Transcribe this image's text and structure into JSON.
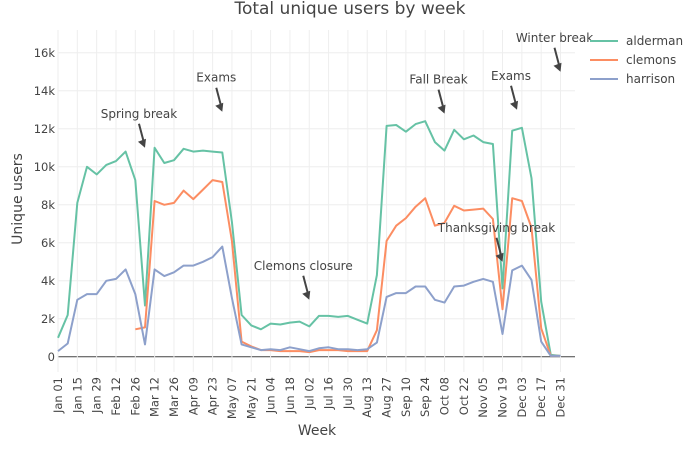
{
  "chart_data": {
    "type": "line",
    "title": "Total unique users by week",
    "xlabel": "Week",
    "ylabel": "Unique users",
    "ylim": [
      -800,
      17200
    ],
    "ytick_values": [
      0,
      2000,
      4000,
      6000,
      8000,
      10000,
      12000,
      14000,
      16000
    ],
    "ytick_labels": [
      "0",
      "2k",
      "4k",
      "6k",
      "8k",
      "10k",
      "12k",
      "14k",
      "16k"
    ],
    "xtick_labels": [
      "Jan 01",
      "Jan 15",
      "Jan 29",
      "Feb 12",
      "Feb 26",
      "Mar 12",
      "Mar 26",
      "Apr 09",
      "Apr 23",
      "May 07",
      "May 21",
      "Jun 04",
      "Jun 18",
      "Jul 02",
      "Jul 16",
      "Jul 30",
      "Aug 13",
      "Aug 27",
      "Sep 10",
      "Sep 24",
      "Oct 08",
      "Oct 22",
      "Nov 05",
      "Nov 19",
      "Dec 03",
      "Dec 17",
      "Dec 31"
    ],
    "xtick_weeks": [
      0,
      2,
      4,
      6,
      8,
      10,
      12,
      14,
      16,
      18,
      20,
      22,
      24,
      26,
      28,
      30,
      32,
      34,
      36,
      38,
      40,
      42,
      44,
      46,
      48,
      50,
      52
    ],
    "x_range_weeks": [
      0,
      53.5
    ],
    "grid": true,
    "legend_position": "top-right",
    "series": [
      {
        "name": "alderman",
        "color": "#66c2a5",
        "weeks": [
          0,
          1,
          2,
          3,
          4,
          5,
          6,
          7,
          8,
          9,
          10,
          11,
          12,
          13,
          14,
          15,
          16,
          17,
          18,
          19,
          20,
          21,
          22,
          23,
          24,
          25,
          26,
          27,
          28,
          29,
          30,
          31,
          32,
          33,
          34,
          35,
          36,
          37,
          38,
          39,
          40,
          41,
          42,
          43,
          44,
          45,
          46,
          47,
          48,
          49,
          50,
          51,
          52
        ],
        "values": [
          1000,
          2200,
          8100,
          10000,
          9600,
          10100,
          10300,
          10800,
          9300,
          2700,
          11000,
          10200,
          10350,
          10950,
          10800,
          10850,
          10800,
          10750,
          7100,
          2200,
          1650,
          1450,
          1750,
          1700,
          1800,
          1850,
          1600,
          2150,
          2150,
          2100,
          2150,
          1950,
          1750,
          4300,
          12150,
          12200,
          11850,
          12250,
          12400,
          11300,
          10850,
          11950,
          11450,
          11650,
          11300,
          11200,
          3600,
          11900,
          12050,
          9400,
          2900,
          100,
          50
        ]
      },
      {
        "name": "clemons",
        "color": "#fc8d62",
        "weeks": [
          8,
          9,
          10,
          11,
          12,
          13,
          14,
          15,
          16,
          17,
          18,
          19,
          20,
          21,
          22,
          23,
          24,
          25,
          26,
          27,
          28,
          29,
          30,
          31,
          32,
          33,
          34,
          35,
          36,
          37,
          38,
          39,
          40,
          41,
          42,
          43,
          44,
          45,
          46,
          47,
          48,
          49,
          50,
          51,
          52
        ],
        "values": [
          1450,
          1550,
          8200,
          8000,
          8100,
          8750,
          8300,
          8800,
          9300,
          9200,
          6100,
          800,
          550,
          350,
          350,
          300,
          300,
          300,
          250,
          350,
          350,
          350,
          300,
          300,
          300,
          1400,
          6100,
          6900,
          7300,
          7900,
          8350,
          6900,
          7050,
          7950,
          7700,
          7750,
          7800,
          7250,
          2500,
          8350,
          8200,
          6800,
          1500,
          50,
          50
        ]
      },
      {
        "name": "harrison",
        "color": "#8da0cb",
        "weeks": [
          0,
          1,
          2,
          3,
          4,
          5,
          6,
          7,
          8,
          9,
          10,
          11,
          12,
          13,
          14,
          15,
          16,
          17,
          18,
          19,
          20,
          21,
          22,
          23,
          24,
          25,
          26,
          27,
          28,
          29,
          30,
          31,
          32,
          33,
          34,
          35,
          36,
          37,
          38,
          39,
          40,
          41,
          42,
          43,
          44,
          45,
          46,
          47,
          48,
          49,
          50,
          51,
          52
        ],
        "values": [
          300,
          700,
          3000,
          3300,
          3300,
          4000,
          4100,
          4600,
          3300,
          650,
          4600,
          4250,
          4450,
          4800,
          4800,
          5000,
          5250,
          5800,
          3100,
          650,
          500,
          350,
          400,
          350,
          500,
          400,
          300,
          450,
          500,
          400,
          400,
          350,
          400,
          750,
          3150,
          3350,
          3350,
          3700,
          3700,
          3000,
          2850,
          3700,
          3750,
          3950,
          4100,
          3950,
          1200,
          4550,
          4800,
          4050,
          800,
          50,
          50
        ]
      }
    ],
    "annotations": [
      {
        "label": "Spring break",
        "week": 9,
        "value": 11000
      },
      {
        "label": "Exams",
        "week": 17,
        "value": 12900
      },
      {
        "label": "Clemons closure",
        "week": 26,
        "value": 3000
      },
      {
        "label": "Fall Break",
        "week": 40,
        "value": 12800
      },
      {
        "label": "Exams",
        "week": 47.5,
        "value": 13000
      },
      {
        "label": "Thanksgiving break",
        "week": 46,
        "value": 5000
      },
      {
        "label": "Winter break",
        "week": 52,
        "value": 15000
      }
    ]
  }
}
